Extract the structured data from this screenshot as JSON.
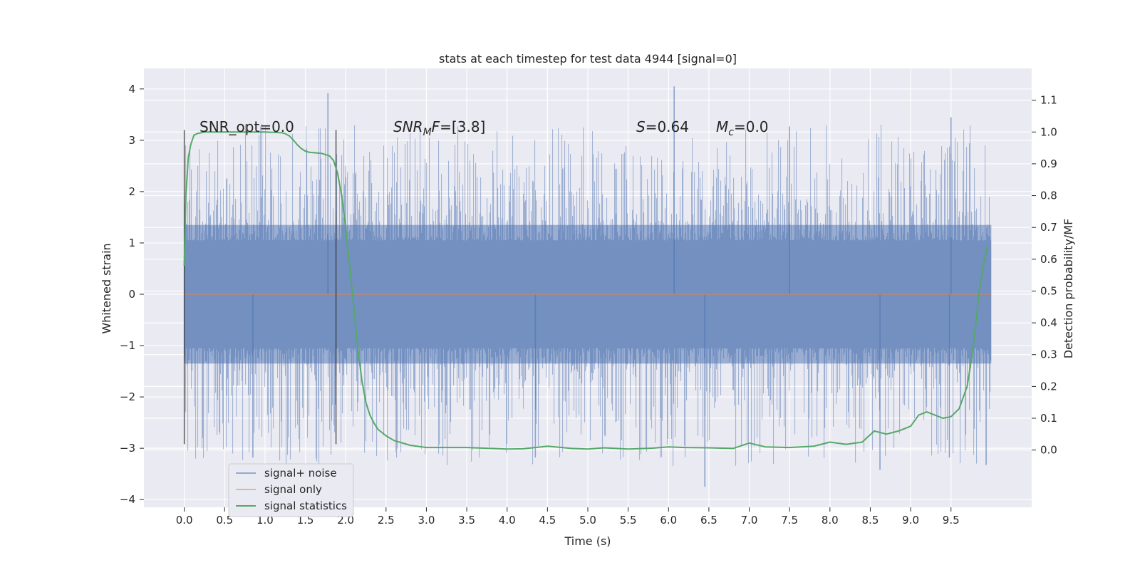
{
  "chart_data": {
    "type": "line",
    "title": "stats at each timestep for test data 4944 [signal=0]",
    "xlabel": "Time (s)",
    "ylabel": "Whitened strain",
    "y2label": "Detection probability/MF",
    "xlim": [
      -0.5,
      10.5
    ],
    "ylim": [
      -4.15,
      4.4
    ],
    "y2lim": [
      -0.18,
      1.2
    ],
    "x_ticks": [
      "0.0",
      "0.5",
      "1.0",
      "1.5",
      "2.0",
      "2.5",
      "3.0",
      "3.5",
      "4.0",
      "4.5",
      "5.0",
      "5.5",
      "6.0",
      "6.5",
      "7.0",
      "7.5",
      "8.0",
      "8.5",
      "9.0",
      "9.5"
    ],
    "y_ticks": [
      "4",
      "3",
      "2",
      "1",
      "0",
      "−1",
      "−2",
      "−3",
      "−4"
    ],
    "y2_ticks": [
      "1.1",
      "1.0",
      "0.9",
      "0.8",
      "0.7",
      "0.6",
      "0.5",
      "0.4",
      "0.3",
      "0.2",
      "0.1",
      "0.0"
    ],
    "grid": true,
    "legend_position": "lower-left",
    "annotations": {
      "snr_opt": "SNR_opt=0.0",
      "snr_mf_prefix": "SNR",
      "snr_mf_sub": "M",
      "snr_mf_mid": "F",
      "snr_mf_value": "=[3.8]",
      "s_label": "S",
      "s_value": "=0.64",
      "mc_label": "M",
      "mc_sub": "c",
      "mc_value": "=0.0"
    },
    "vertical_markers_x": [
      0.0,
      1.88
    ],
    "noise_envelope": {
      "x_range": [
        0.0,
        10.0
      ],
      "typical_peak_abs": 2.0,
      "notable_max": [
        [
          1.78,
          3.92
        ],
        [
          6.07,
          4.05
        ],
        [
          9.5,
          3.45
        ],
        [
          7.5,
          3.27
        ]
      ],
      "notable_min": [
        [
          6.45,
          -3.75
        ],
        [
          8.62,
          -3.42
        ],
        [
          0.85,
          -3.18
        ],
        [
          4.35,
          -3.18
        ],
        [
          9.48,
          -3.18
        ]
      ]
    },
    "series": [
      {
        "name": "signal+ noise",
        "color": "#4c72b0",
        "style": "dense-noise",
        "values_description": "whitened strain noise"
      },
      {
        "name": "signal only",
        "color": "#dd8452",
        "x": [
          0.0,
          10.0
        ],
        "y": [
          0.0,
          0.0
        ]
      },
      {
        "name": "signal statistics",
        "color": "#55a868",
        "axis": "right",
        "x": [
          0.0,
          0.02,
          0.05,
          0.08,
          0.12,
          0.16,
          0.25,
          0.4,
          0.6,
          0.8,
          1.0,
          1.2,
          1.25,
          1.3,
          1.35,
          1.4,
          1.45,
          1.5,
          1.55,
          1.6,
          1.7,
          1.8,
          1.85,
          1.9,
          1.95,
          2.0,
          2.05,
          2.1,
          2.15,
          2.2,
          2.25,
          2.3,
          2.35,
          2.4,
          2.5,
          2.6,
          2.8,
          3.0,
          3.5,
          3.8,
          4.0,
          4.2,
          4.5,
          4.8,
          5.0,
          5.2,
          5.5,
          5.8,
          6.0,
          6.2,
          6.5,
          6.8,
          7.0,
          7.2,
          7.5,
          7.8,
          8.0,
          8.2,
          8.4,
          8.55,
          8.7,
          8.85,
          9.0,
          9.1,
          9.2,
          9.3,
          9.4,
          9.5,
          9.6,
          9.7,
          9.75,
          9.8,
          9.85,
          9.9,
          9.95
        ],
        "y": [
          0.58,
          0.8,
          0.92,
          0.96,
          0.99,
          0.995,
          1.0,
          1.0,
          1.0,
          1.0,
          1.0,
          0.998,
          0.995,
          0.988,
          0.975,
          0.96,
          0.948,
          0.94,
          0.936,
          0.935,
          0.933,
          0.925,
          0.91,
          0.87,
          0.8,
          0.7,
          0.58,
          0.45,
          0.32,
          0.22,
          0.15,
          0.11,
          0.085,
          0.065,
          0.045,
          0.03,
          0.015,
          0.008,
          0.008,
          0.005,
          0.003,
          0.004,
          0.012,
          0.005,
          0.003,
          0.007,
          0.003,
          0.006,
          0.01,
          0.008,
          0.007,
          0.005,
          0.022,
          0.01,
          0.008,
          0.012,
          0.025,
          0.018,
          0.025,
          0.06,
          0.05,
          0.06,
          0.075,
          0.11,
          0.12,
          0.11,
          0.1,
          0.105,
          0.13,
          0.2,
          0.28,
          0.38,
          0.5,
          0.58,
          0.64
        ]
      }
    ]
  }
}
